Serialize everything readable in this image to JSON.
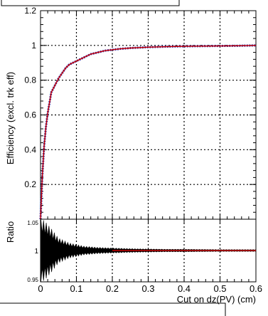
{
  "chart_data": [
    {
      "type": "line",
      "panel": "main",
      "ylabel": "Efficiency (excl. trk eff)",
      "xlim": [
        0,
        0.6
      ],
      "ylim": [
        0,
        1.2
      ],
      "xticks": [
        "0",
        "0.1",
        "0.2",
        "0.3",
        "0.4",
        "0.5",
        "0.6"
      ],
      "yticks": [
        "0",
        "0.2",
        "0.4",
        "0.6",
        "0.8",
        "1",
        "1.2"
      ],
      "grid": true,
      "series": [
        {
          "color": "#2a2aa8",
          "x": [
            0,
            0.005,
            0.01,
            0.015,
            0.02,
            0.025,
            0.03,
            0.04,
            0.05,
            0.06,
            0.07,
            0.08,
            0.09,
            0.1,
            0.12,
            0.14,
            0.16,
            0.18,
            0.2,
            0.22,
            0.25,
            0.3,
            0.35,
            0.4,
            0.45,
            0.5,
            0.55,
            0.6
          ],
          "y": [
            0.0,
            0.25,
            0.42,
            0.53,
            0.61,
            0.67,
            0.73,
            0.77,
            0.81,
            0.84,
            0.87,
            0.89,
            0.9,
            0.91,
            0.93,
            0.95,
            0.96,
            0.97,
            0.975,
            0.98,
            0.985,
            0.99,
            0.993,
            0.995,
            0.996,
            0.997,
            0.998,
            1.0
          ]
        },
        {
          "color": "#cc0000",
          "x": [
            0,
            0.005,
            0.01,
            0.015,
            0.02,
            0.025,
            0.03,
            0.04,
            0.05,
            0.06,
            0.07,
            0.08,
            0.09,
            0.1,
            0.12,
            0.14,
            0.16,
            0.18,
            0.2,
            0.22,
            0.25,
            0.3,
            0.35,
            0.4,
            0.45,
            0.5,
            0.55,
            0.6
          ],
          "y": [
            0.0,
            0.25,
            0.42,
            0.53,
            0.61,
            0.67,
            0.73,
            0.77,
            0.81,
            0.84,
            0.87,
            0.89,
            0.9,
            0.91,
            0.93,
            0.95,
            0.96,
            0.97,
            0.975,
            0.98,
            0.985,
            0.99,
            0.993,
            0.995,
            0.996,
            0.997,
            0.998,
            1.0
          ]
        }
      ]
    },
    {
      "type": "line",
      "panel": "ratio",
      "ylabel": "Ratio",
      "xlabel": "Cut on dz(PV) (cm)",
      "xlim": [
        0,
        0.6
      ],
      "ylim": [
        0.95,
        1.05
      ],
      "xticks": [
        "0",
        "0.1",
        "0.2",
        "0.3",
        "0.4",
        "0.5",
        "0.6"
      ],
      "yticks": [
        "0.95",
        "1",
        "1.05"
      ],
      "grid": true,
      "series": [
        {
          "color": "#000000",
          "x": [
            0.005,
            0.015,
            0.03,
            0.05,
            0.08,
            0.12,
            0.16,
            0.2,
            0.25,
            0.3,
            0.35,
            0.4,
            0.5,
            0.6
          ],
          "y": [
            1,
            1,
            1,
            1,
            1,
            1,
            1,
            1,
            1,
            1,
            1,
            1,
            1,
            1
          ],
          "err": [
            0.05,
            0.045,
            0.035,
            0.02,
            0.012,
            0.007,
            0.005,
            0.004,
            0.003,
            0.0025,
            0.002,
            0.002,
            0.0015,
            0.0015
          ]
        },
        {
          "color": "#cc0000",
          "x": [
            0.2,
            0.6
          ],
          "y": [
            1,
            1
          ]
        }
      ]
    }
  ]
}
